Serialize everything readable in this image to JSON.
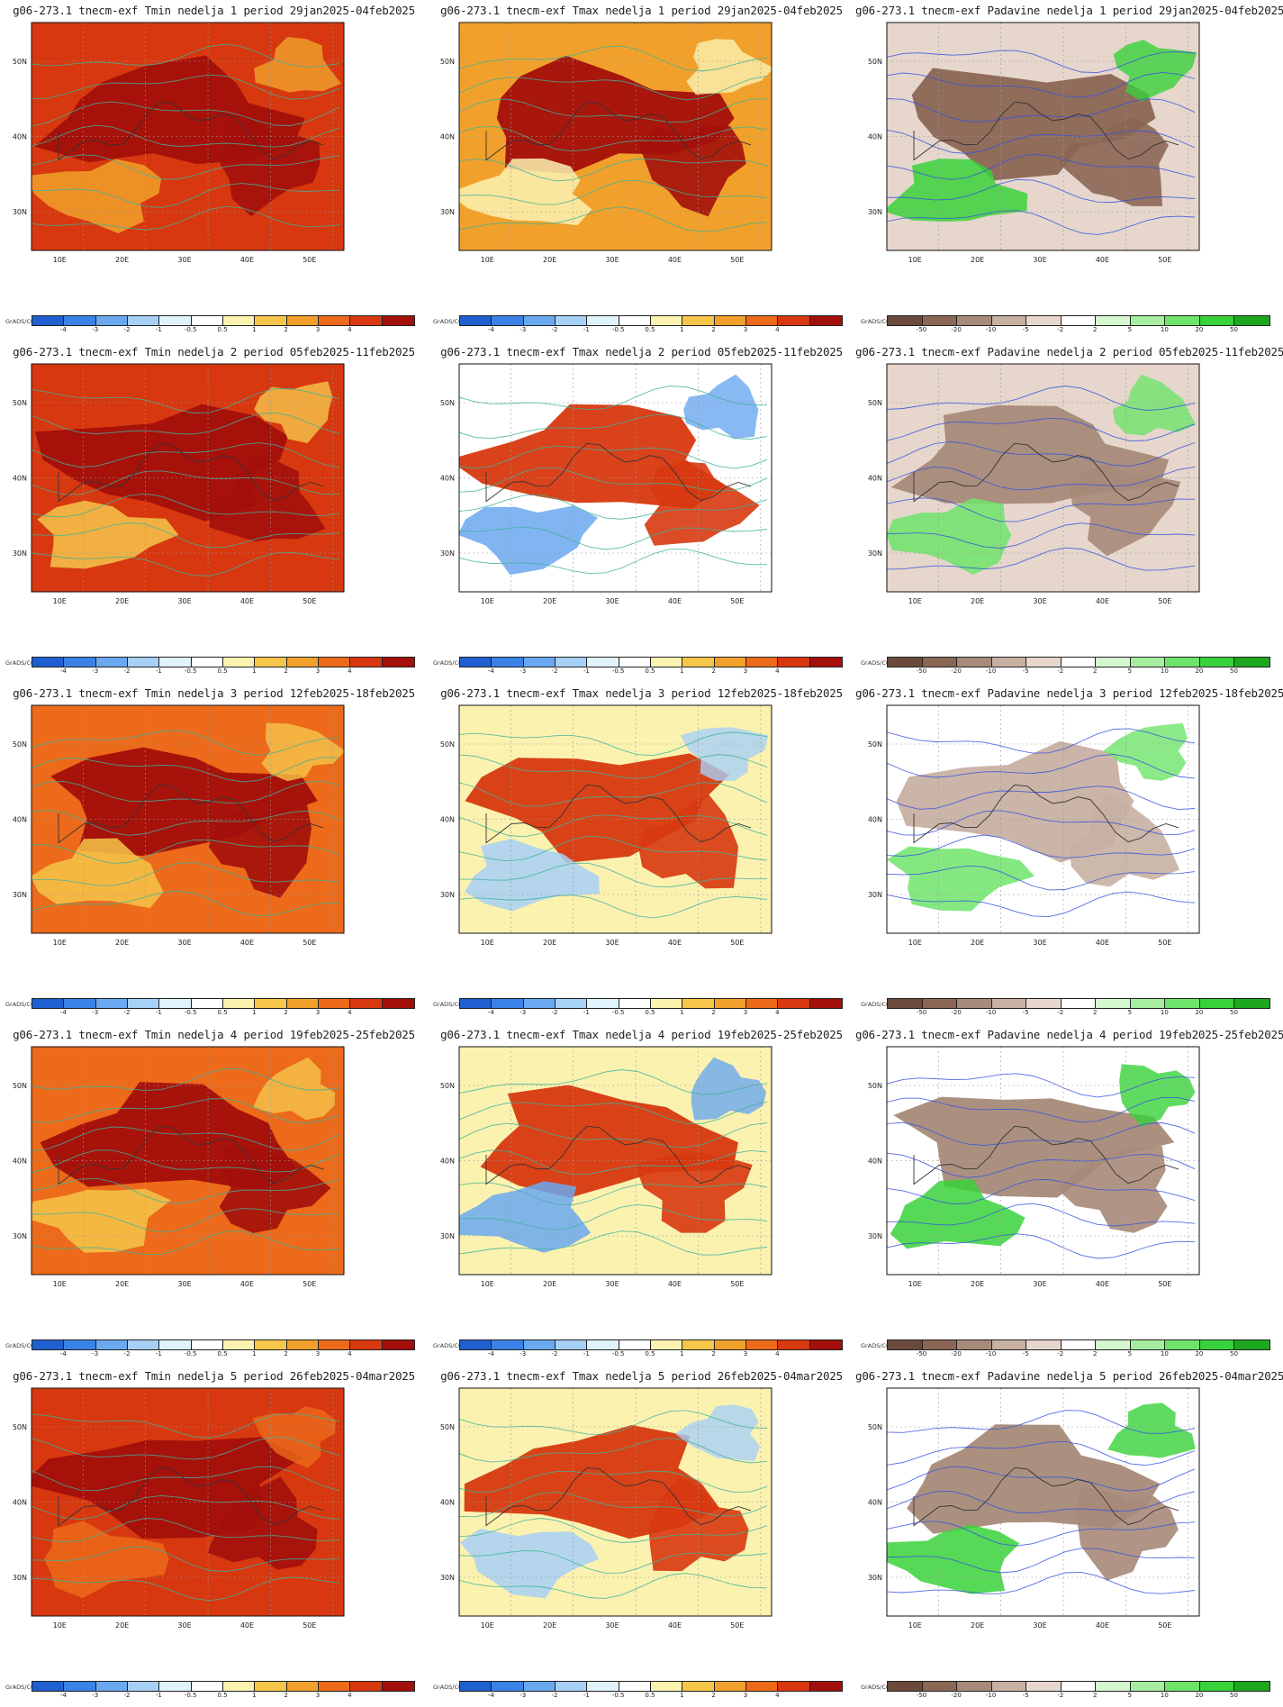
{
  "palettes": {
    "temp": [
      "#1f5fd0",
      "#3a82e6",
      "#6aa8f0",
      "#a7d0f6",
      "#e0f3fb",
      "#ffffff",
      "#fbf2b0",
      "#f6c64a",
      "#f1a12b",
      "#ec6a1a",
      "#d7380f",
      "#a30f0b"
    ],
    "precip": [
      "#6b4a3c",
      "#8b6654",
      "#a78a79",
      "#c8b0a3",
      "#e6d6cc",
      "#ffffff",
      "#d5f7d0",
      "#a6ee9f",
      "#6ee46a",
      "#38d23a",
      "#1ca71e"
    ]
  },
  "colorbars": {
    "temp_labels": [
      "-4",
      "-3",
      "-2",
      "-1",
      "-0.5",
      "0.5",
      "1",
      "2",
      "3",
      "4"
    ],
    "precip_labels": [
      "-50",
      "-20",
      "-10",
      "-5",
      "-2",
      "2",
      "5",
      "10",
      "20",
      "50"
    ],
    "credit": "GrADS/COLA"
  },
  "axes": {
    "lon_labels": [
      "10E",
      "20E",
      "30E",
      "40E",
      "50E"
    ],
    "lat_labels": [
      "50N",
      "40N",
      "30N"
    ]
  },
  "panels": [
    {
      "title": "g06-273.1 tnecm-exf Tmin nedelja 1 period 29jan2025-04feb2025",
      "var": "tmin",
      "base": "#d7380f",
      "accent": "#a30f0b",
      "secondary": "#f1a12b"
    },
    {
      "title": "g06-273.1 tnecm-exf Tmax nedelja 1 period 29jan2025-04feb2025",
      "var": "tmax",
      "base": "#f1a12b",
      "accent": "#a30f0b",
      "secondary": "#fbf2b0"
    },
    {
      "title": "g06-273.1 tnecm-exf Padavine nedelja 1 period 29jan2025-04feb2025",
      "var": "precip",
      "base": "#e6d6cc",
      "accent": "#8b6654",
      "secondary": "#38d23a"
    },
    {
      "title": "g06-273.1 tnecm-exf Tmin nedelja 2 period 05feb2025-11feb2025",
      "var": "tmin",
      "base": "#d7380f",
      "accent": "#a30f0b",
      "secondary": "#f6c64a"
    },
    {
      "title": "g06-273.1 tnecm-exf Tmax nedelja 2 period 05feb2025-11feb2025",
      "var": "tmax",
      "base": "#ffffff",
      "accent": "#d7380f",
      "secondary": "#6aa8f0"
    },
    {
      "title": "g06-273.1 tnecm-exf Padavine nedelja 2 period 05feb2025-11feb2025",
      "var": "precip",
      "base": "#e6d6cc",
      "accent": "#a78a79",
      "secondary": "#6ee46a"
    },
    {
      "title": "g06-273.1 tnecm-exf Tmin nedelja 3 period 12feb2025-18feb2025",
      "var": "tmin",
      "base": "#ec6a1a",
      "accent": "#a30f0b",
      "secondary": "#f6c64a"
    },
    {
      "title": "g06-273.1 tnecm-exf Tmax nedelja 3 period 12feb2025-18feb2025",
      "var": "tmax",
      "base": "#fbf2b0",
      "accent": "#d7380f",
      "secondary": "#a7d0f6"
    },
    {
      "title": "g06-273.1 tnecm-exf Padavine nedelja 3 period 12feb2025-18feb2025",
      "var": "precip",
      "base": "#ffffff",
      "accent": "#c8b0a3",
      "secondary": "#6ee46a"
    },
    {
      "title": "g06-273.1 tnecm-exf Tmin nedelja 4 period 19feb2025-25feb2025",
      "var": "tmin",
      "base": "#ec6a1a",
      "accent": "#a30f0b",
      "secondary": "#f6c64a"
    },
    {
      "title": "g06-273.1 tnecm-exf Tmax nedelja 4 period 19feb2025-25feb2025",
      "var": "tmax",
      "base": "#fbf2b0",
      "accent": "#d7380f",
      "secondary": "#6aa8f0"
    },
    {
      "title": "g06-273.1 tnecm-exf Padavine nedelja 4 period 19feb2025-25feb2025",
      "var": "precip",
      "base": "#ffffff",
      "accent": "#a78a79",
      "secondary": "#38d23a"
    },
    {
      "title": "g06-273.1 tnecm-exf Tmin nedelja 5 period 26feb2025-04mar2025",
      "var": "tmin",
      "base": "#d7380f",
      "accent": "#a30f0b",
      "secondary": "#ec6a1a"
    },
    {
      "title": "g06-273.1 tnecm-exf Tmax nedelja 5 period 26feb2025-04mar2025",
      "var": "tmax",
      "base": "#fbf2b0",
      "accent": "#d7380f",
      "secondary": "#a7d0f6"
    },
    {
      "title": "g06-273.1 tnecm-exf Padavine nedelja 5 period 26feb2025-04mar2025",
      "var": "precip",
      "base": "#ffffff",
      "accent": "#a78a79",
      "secondary": "#38d23a"
    }
  ]
}
